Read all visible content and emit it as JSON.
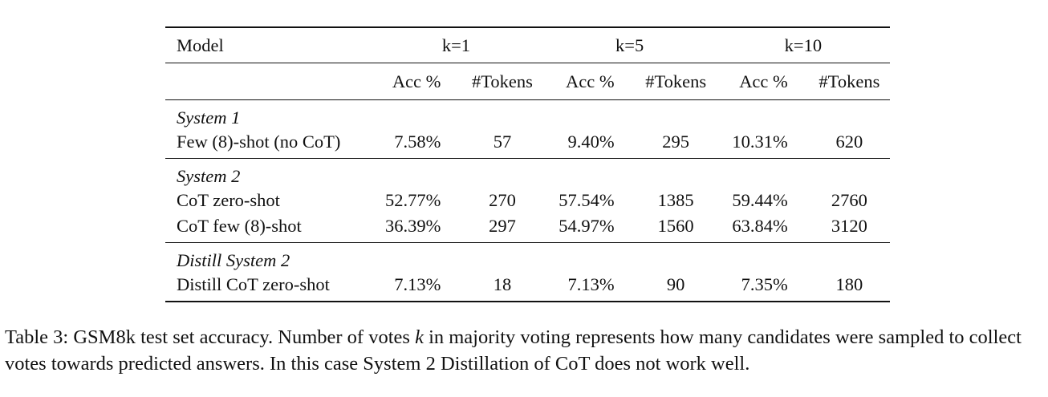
{
  "table": {
    "header": {
      "model": "Model",
      "groups": [
        "k=1",
        "k=5",
        "k=10"
      ],
      "sub": [
        "Acc %",
        "#Tokens",
        "Acc %",
        "#Tokens",
        "Acc %",
        "#Tokens"
      ]
    },
    "sections": [
      {
        "title": "System 1",
        "rows": [
          {
            "model": "Few (8)-shot (no CoT)",
            "cells": [
              "7.58%",
              "57",
              "9.40%",
              "295",
              "10.31%",
              "620"
            ]
          }
        ]
      },
      {
        "title": "System 2",
        "rows": [
          {
            "model": "CoT zero-shot",
            "cells": [
              "52.77%",
              "270",
              "57.54%",
              "1385",
              "59.44%",
              "2760"
            ]
          },
          {
            "model": "CoT few (8)-shot",
            "cells": [
              "36.39%",
              "297",
              "54.97%",
              "1560",
              "63.84%",
              "3120"
            ]
          }
        ]
      },
      {
        "title": "Distill System 2",
        "rows": [
          {
            "model": "Distill CoT zero-shot",
            "cells": [
              "7.13%",
              "18",
              "7.13%",
              "90",
              "7.35%",
              "180"
            ]
          }
        ]
      }
    ]
  },
  "caption": {
    "part1": "Table 3: GSM8k test set accuracy. Number of votes ",
    "k": "k",
    "part2": " in majority voting represents how many candidates were sampled to collect votes towards predicted answers. In this case System 2 Distillation of CoT does not work well."
  }
}
